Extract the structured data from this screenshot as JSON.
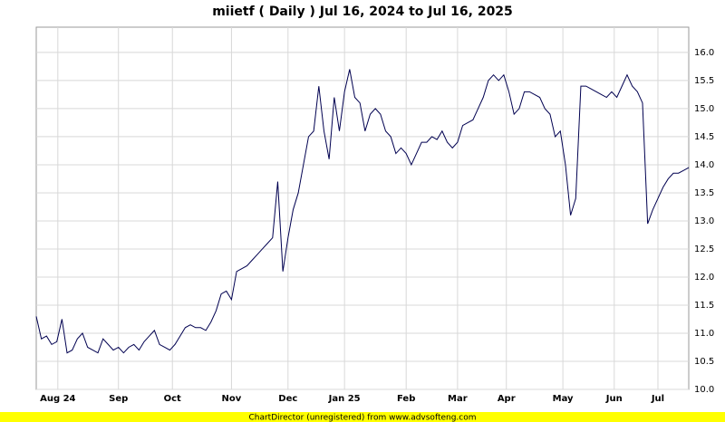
{
  "chart_data": {
    "type": "line",
    "title": "miietf ( Daily ) Jul 16, 2024 to Jul 16, 2025",
    "footer": "ChartDirector (unregistered) from www.advsofteng.com",
    "x": [
      0,
      1,
      2,
      3,
      4,
      5,
      6,
      7,
      8,
      9,
      10,
      11,
      12,
      13,
      14,
      15,
      16,
      17,
      18,
      19,
      20,
      21,
      22,
      23,
      24,
      25,
      26,
      27,
      28,
      29,
      30,
      31,
      32,
      33,
      34,
      35,
      36,
      37,
      38,
      39,
      40,
      41,
      42,
      43,
      44,
      45,
      46,
      47,
      48,
      49,
      50,
      51,
      52,
      53,
      54,
      55,
      56,
      57,
      58,
      59,
      60,
      61,
      62,
      63,
      64,
      65,
      66,
      67,
      68,
      69,
      70,
      71,
      72,
      73,
      74,
      75,
      76,
      77,
      78,
      79,
      80,
      81,
      82,
      83,
      84,
      85,
      86,
      87,
      88,
      89,
      90,
      91,
      92,
      93,
      94,
      95,
      96,
      97,
      98,
      99,
      100,
      101,
      102,
      103,
      104,
      105,
      106,
      107,
      108,
      109,
      110,
      111,
      112,
      113,
      114,
      115,
      116,
      117,
      118,
      119,
      120,
      121,
      122,
      123,
      124,
      125,
      126,
      127
    ],
    "series": [
      {
        "color": "#000050",
        "values": [
          11.3,
          10.9,
          10.95,
          10.8,
          10.85,
          11.25,
          10.65,
          10.7,
          10.9,
          11.0,
          10.75,
          10.7,
          10.65,
          10.9,
          10.8,
          10.7,
          10.75,
          10.65,
          10.75,
          10.8,
          10.7,
          10.85,
          10.95,
          11.05,
          10.8,
          10.75,
          10.7,
          10.8,
          10.95,
          11.1,
          11.15,
          11.1,
          11.1,
          11.05,
          11.2,
          11.4,
          11.7,
          11.75,
          11.6,
          12.1,
          12.15,
          12.2,
          12.3,
          12.4,
          12.5,
          12.6,
          12.7,
          13.7,
          12.1,
          12.7,
          13.2,
          13.5,
          14.0,
          14.5,
          14.6,
          15.4,
          14.6,
          14.1,
          15.2,
          14.6,
          15.3,
          15.7,
          15.2,
          15.1,
          14.6,
          14.9,
          15.0,
          14.9,
          14.6,
          14.5,
          14.2,
          14.3,
          14.2,
          14.0,
          14.2,
          14.4,
          14.4,
          14.5,
          14.45,
          14.6,
          14.4,
          14.3,
          14.4,
          14.7,
          14.75,
          14.8,
          15.0,
          15.2,
          15.5,
          15.6,
          15.5,
          15.6,
          15.3,
          14.9,
          15.0,
          15.3,
          15.3,
          15.25,
          15.2,
          15.0,
          14.9,
          14.5,
          14.6,
          14.0,
          13.1,
          13.4,
          15.4,
          15.4,
          15.35,
          15.3,
          15.25,
          15.2,
          15.3,
          15.2,
          15.4,
          15.6,
          15.4,
          15.3,
          15.1,
          12.95,
          13.2,
          13.4,
          13.6,
          13.75,
          13.85,
          13.85,
          13.9,
          13.95
        ]
      }
    ],
    "xlim": [
      0,
      127
    ],
    "xticks": [
      {
        "value": 4.2,
        "label": "Aug 24"
      },
      {
        "value": 16,
        "label": "Sep"
      },
      {
        "value": 26.5,
        "label": "Oct"
      },
      {
        "value": 38,
        "label": "Nov"
      },
      {
        "value": 49,
        "label": "Dec"
      },
      {
        "value": 60,
        "label": "Jan 25"
      },
      {
        "value": 72,
        "label": "Feb"
      },
      {
        "value": 82,
        "label": "Mar"
      },
      {
        "value": 91.5,
        "label": "Apr"
      },
      {
        "value": 102.5,
        "label": "May"
      },
      {
        "value": 112.5,
        "label": "Jun"
      },
      {
        "value": 121,
        "label": "Jul"
      }
    ],
    "ylim": [
      10,
      16.45
    ],
    "yticks": [
      {
        "value": 10,
        "label": "10.0"
      },
      10.5,
      {
        "value": 11,
        "label": "11.0"
      },
      11.5,
      {
        "value": 12,
        "label": "12.0"
      },
      12.5,
      {
        "value": 13,
        "label": "13.0"
      },
      13.5,
      {
        "value": 14,
        "label": "14.0"
      },
      14.5,
      {
        "value": 15,
        "label": "15.0"
      },
      15.5,
      {
        "value": 16,
        "label": "16.0"
      }
    ],
    "grid": true
  }
}
